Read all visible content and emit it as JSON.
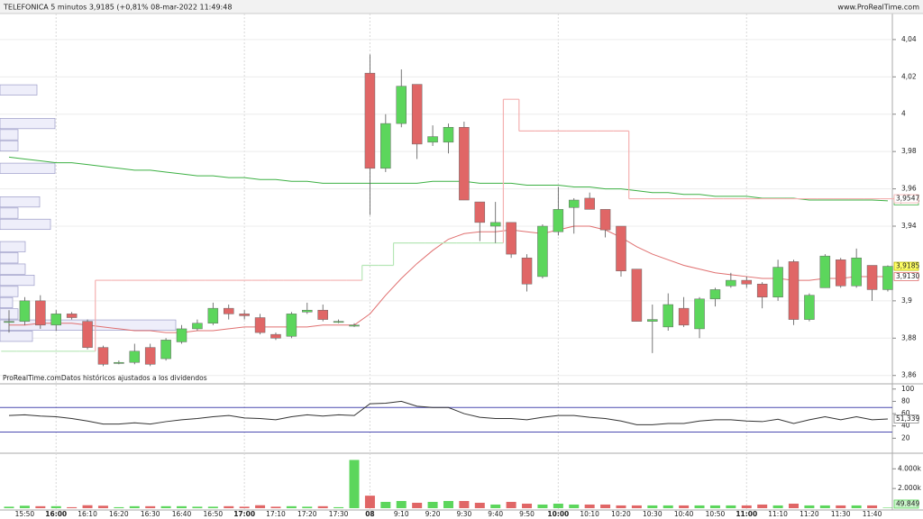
{
  "chart_data": [
    {
      "type": "candlestick",
      "title": "TELEFONICA 5 minutos 3,9185 (+0,81% 08-mar-2022 11:49:48",
      "source": "www.ProRealTime.com",
      "note": "ProRealTime.comDatos históricos ajustados a los dividendos",
      "categories": [
        null,
        "15:50",
        null,
        "16:00",
        null,
        "16:10",
        null,
        "16:20",
        null,
        "16:30",
        null,
        "16:40",
        null,
        "16:50",
        null,
        "17:00",
        null,
        "17:10",
        null,
        "17:20",
        null,
        "17:30",
        null,
        "08",
        null,
        "9:10",
        null,
        "9:20",
        null,
        "9:30",
        null,
        "9:40",
        null,
        "9:50",
        null,
        "10:00",
        null,
        "10:10",
        null,
        "10:20",
        null,
        "10:30",
        null,
        "10:40",
        null,
        "10:50",
        null,
        "11:00",
        null,
        "11:10",
        null,
        "11:20",
        null,
        "11:30",
        null,
        "11:40",
        null
      ],
      "major_category_indices": [
        3,
        15,
        23,
        35,
        47
      ],
      "open": [
        3.889,
        3.889,
        3.9,
        3.887,
        3.893,
        3.889,
        3.875,
        3.867,
        3.867,
        3.875,
        3.869,
        3.878,
        3.885,
        3.888,
        3.896,
        3.893,
        3.891,
        3.882,
        3.881,
        3.894,
        3.895,
        3.889,
        3.887,
        4.022,
        3.971,
        3.995,
        4.016,
        3.985,
        3.985,
        3.993,
        3.953,
        3.94,
        3.942,
        3.923,
        3.913,
        3.937,
        3.95,
        3.955,
        3.949,
        3.94,
        3.917,
        3.889,
        3.886,
        3.896,
        3.885,
        3.901,
        3.908,
        3.911,
        3.909,
        3.902,
        3.921,
        3.89,
        3.907,
        3.922,
        3.908,
        3.919,
        3.906
      ],
      "high": [
        3.895,
        3.902,
        3.903,
        3.895,
        3.894,
        3.89,
        3.876,
        3.868,
        3.877,
        3.877,
        3.88,
        3.887,
        3.89,
        3.899,
        3.898,
        3.895,
        3.893,
        3.883,
        3.894,
        3.899,
        3.898,
        3.89,
        3.888,
        4.032,
        4.0,
        4.024,
        4.016,
        3.994,
        3.995,
        3.996,
        3.953,
        3.953,
        3.942,
        3.925,
        3.941,
        3.961,
        3.955,
        3.958,
        3.949,
        3.94,
        3.917,
        3.898,
        3.904,
        3.902,
        3.902,
        3.907,
        3.915,
        3.913,
        3.91,
        3.922,
        3.922,
        3.904,
        3.925,
        3.923,
        3.928,
        3.919,
        3.919
      ],
      "low": [
        3.883,
        3.887,
        3.885,
        3.884,
        3.89,
        3.874,
        3.865,
        3.866,
        3.866,
        3.865,
        3.868,
        3.877,
        3.884,
        3.887,
        3.89,
        3.89,
        3.882,
        3.879,
        3.88,
        3.893,
        3.889,
        3.888,
        3.886,
        3.946,
        3.969,
        3.993,
        3.976,
        3.983,
        3.979,
        3.954,
        3.932,
        3.931,
        3.923,
        3.905,
        3.912,
        3.935,
        3.936,
        3.949,
        3.934,
        3.913,
        3.889,
        3.872,
        3.884,
        3.886,
        3.88,
        3.897,
        3.907,
        3.907,
        3.896,
        3.9,
        3.887,
        3.889,
        3.907,
        3.907,
        3.907,
        3.9,
        3.905
      ],
      "close": [
        3.889,
        3.9,
        3.887,
        3.893,
        3.891,
        3.875,
        3.866,
        3.867,
        3.873,
        3.866,
        3.879,
        3.885,
        3.888,
        3.896,
        3.893,
        3.892,
        3.883,
        3.88,
        3.893,
        3.895,
        3.89,
        3.889,
        3.887,
        3.971,
        3.995,
        4.015,
        3.984,
        3.988,
        3.993,
        3.954,
        3.942,
        3.942,
        3.925,
        3.909,
        3.94,
        3.949,
        3.954,
        3.949,
        3.938,
        3.916,
        3.889,
        3.89,
        3.898,
        3.887,
        3.901,
        3.906,
        3.911,
        3.909,
        3.902,
        3.918,
        3.89,
        3.903,
        3.924,
        3.908,
        3.923,
        3.906,
        3.9185
      ],
      "close_label": "3,9185",
      "up_color": "#5cd65c",
      "down_color": "#e06666",
      "ylim": [
        3.856,
        4.0525
      ],
      "yticks": [
        {
          "value": 4.04,
          "label": "4,04"
        },
        {
          "value": 4.02,
          "label": "4,02"
        },
        4,
        {
          "value": 3.98,
          "label": "3,98"
        },
        {
          "value": 3.96,
          "label": "3,96"
        },
        {
          "value": 3.94,
          "label": "3,94"
        },
        {
          "value": 3.9,
          "label": "3,9"
        },
        {
          "value": 3.88,
          "label": "3,88"
        },
        {
          "value": 3.86,
          "label": "3,86"
        }
      ],
      "grid": true,
      "series": [
        {
          "style": "line",
          "color": "#3cb043",
          "last_label": "3,9536",
          "values": [
            3.977,
            3.976,
            3.975,
            3.974,
            3.974,
            3.973,
            3.972,
            3.971,
            3.97,
            3.97,
            3.969,
            3.968,
            3.967,
            3.967,
            3.966,
            3.966,
            3.965,
            3.965,
            3.964,
            3.964,
            3.963,
            3.963,
            3.963,
            3.963,
            3.963,
            3.963,
            3.963,
            3.964,
            3.964,
            3.964,
            3.963,
            3.963,
            3.963,
            3.962,
            3.962,
            3.962,
            3.961,
            3.961,
            3.96,
            3.96,
            3.959,
            3.958,
            3.958,
            3.957,
            3.957,
            3.956,
            3.956,
            3.956,
            3.955,
            3.955,
            3.955,
            3.954,
            3.954,
            3.954,
            3.954,
            3.954,
            3.9536
          ]
        },
        {
          "style": "line",
          "color": "#e07070",
          "last_label": "3,9130",
          "values": [
            3.887,
            3.887,
            3.888,
            3.888,
            3.888,
            3.887,
            3.886,
            3.885,
            3.884,
            3.884,
            3.883,
            3.883,
            3.884,
            3.884,
            3.885,
            3.886,
            3.886,
            3.886,
            3.886,
            3.886,
            3.887,
            3.887,
            3.887,
            3.893,
            3.903,
            3.912,
            3.92,
            3.927,
            3.933,
            3.936,
            3.937,
            3.937,
            3.938,
            3.937,
            3.936,
            3.938,
            3.94,
            3.94,
            3.938,
            3.934,
            3.929,
            3.925,
            3.922,
            3.919,
            3.917,
            3.915,
            3.914,
            3.913,
            3.912,
            3.912,
            3.911,
            3.911,
            3.912,
            3.912,
            3.913,
            3.913,
            3.913
          ]
        },
        {
          "style": "step",
          "color": "#f4b0b0",
          "up_color": "#b6e6b6",
          "last_label": "3,9547",
          "values": [
            3.873,
            3.873,
            3.873,
            3.873,
            3.873,
            3.873,
            3.911,
            3.911,
            3.911,
            3.911,
            3.911,
            3.911,
            3.911,
            3.911,
            3.911,
            3.911,
            3.911,
            3.911,
            3.911,
            3.911,
            3.911,
            3.911,
            3.911,
            3.919,
            3.919,
            3.931,
            3.931,
            3.931,
            3.931,
            3.931,
            3.931,
            3.931,
            4.008,
            3.991,
            3.991,
            3.991,
            3.991,
            3.991,
            3.991,
            3.991,
            3.9547,
            3.9547,
            3.9547,
            3.9547,
            3.9547,
            3.9547,
            3.9547,
            3.9547,
            3.9547,
            3.9547,
            3.9547,
            3.9547,
            3.9547,
            3.9547,
            3.9547,
            3.9547,
            3.9547
          ]
        }
      ]
    },
    {
      "type": "histogram",
      "orientation": "horizontal",
      "bins": [
        3.872,
        3.878,
        3.884,
        3.89,
        3.896,
        3.902,
        3.908,
        3.914,
        3.92,
        3.926,
        3.932,
        3.938,
        3.944,
        3.95,
        3.956,
        3.962,
        3.968,
        3.974,
        3.98,
        3.986,
        3.992,
        3.998,
        4.004,
        4.01,
        4.016
      ],
      "values": [
        0,
        36,
        195,
        20,
        14,
        20,
        38,
        28,
        20,
        28,
        0,
        56,
        20,
        44,
        0,
        0,
        61,
        0,
        20,
        20,
        61,
        0,
        0,
        41
      ],
      "xlim": [
        0,
        990
      ],
      "color": "#eeeefa",
      "edge_color": "#9c9cc8"
    },
    {
      "type": "line",
      "ylim": [
        0,
        107
      ],
      "yticks": [
        100,
        80,
        60,
        40,
        20
      ],
      "reference_lines": [
        70,
        30
      ],
      "reference_color": "#4a4ab0",
      "series": [
        {
          "color": "#333333",
          "last_label": "51,339",
          "values": [
            57,
            58,
            56,
            55,
            52,
            48,
            43,
            43,
            45,
            43,
            47,
            50,
            52,
            55,
            57,
            53,
            52,
            50,
            55,
            58,
            56,
            58,
            57,
            76,
            77,
            80,
            72,
            70,
            70,
            60,
            54,
            52,
            52,
            50,
            54,
            57,
            57,
            54,
            52,
            48,
            42,
            42,
            44,
            44,
            48,
            50,
            50,
            48,
            47,
            51,
            44,
            50,
            55,
            50,
            55,
            50,
            51.339
          ]
        }
      ]
    },
    {
      "type": "bar",
      "ylim": [
        0,
        5400000
      ],
      "yticks": [
        {
          "value": 4000000,
          "label": "4.000k"
        },
        {
          "value": 2000000,
          "label": "2.000k"
        }
      ],
      "up_color": "#5cd65c",
      "down_color": "#e06666",
      "last_label": "49.849",
      "values": [
        150000,
        250000,
        200000,
        200000,
        100000,
        300000,
        250000,
        100000,
        200000,
        200000,
        200000,
        200000,
        150000,
        150000,
        200000,
        150000,
        300000,
        150000,
        200000,
        150000,
        200000,
        100000,
        4900000,
        1270000,
        640000,
        730000,
        550000,
        640000,
        730000,
        730000,
        550000,
        370000,
        640000,
        460000,
        370000,
        460000,
        370000,
        370000,
        370000,
        280000,
        280000,
        280000,
        280000,
        280000,
        280000,
        280000,
        280000,
        280000,
        370000,
        280000,
        460000,
        280000,
        280000,
        280000,
        280000,
        280000,
        49849
      ]
    }
  ]
}
